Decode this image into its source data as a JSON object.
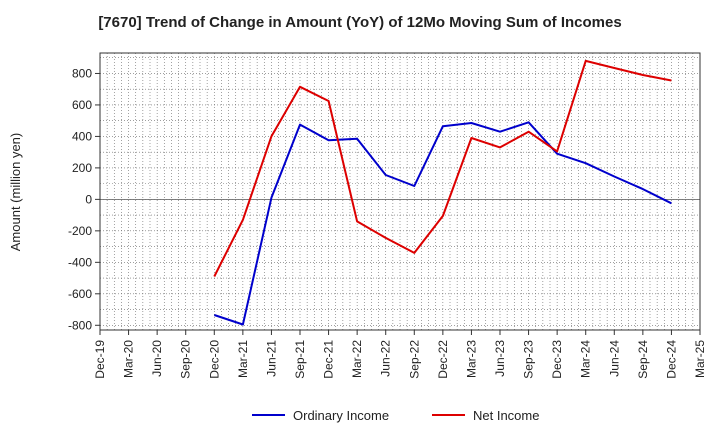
{
  "chart_data": {
    "type": "line",
    "title": "[7670]  Trend of Change in Amount (YoY) of 12Mo Moving Sum of Incomes",
    "ylabel": "Amount (million yen)",
    "xlabel": "",
    "ylim": [
      -830,
      930
    ],
    "yticks": [
      -800,
      -600,
      -400,
      -200,
      0,
      200,
      400,
      600,
      800
    ],
    "x_tick_labels": [
      "Dec-19",
      "Mar-20",
      "Jun-20",
      "Sep-20",
      "Dec-20",
      "Mar-21",
      "Jun-21",
      "Sep-21",
      "Dec-21",
      "Mar-22",
      "Jun-22",
      "Sep-22",
      "Dec-22",
      "Mar-23",
      "Jun-23",
      "Sep-23",
      "Dec-23",
      "Mar-24",
      "Jun-24",
      "Sep-24",
      "Dec-24",
      "Mar-25"
    ],
    "grid": true,
    "legend_position": "bottom",
    "series": [
      {
        "name": "Ordinary Income",
        "color": "#0000cc",
        "values": [
          null,
          null,
          null,
          null,
          -735,
          -795,
          10,
          475,
          375,
          385,
          155,
          85,
          465,
          485,
          430,
          490,
          290,
          230,
          145,
          65,
          -25,
          null
        ]
      },
      {
        "name": "Net Income",
        "color": "#dd0000",
        "values": [
          null,
          null,
          null,
          null,
          -490,
          -130,
          400,
          715,
          625,
          -140,
          -245,
          -340,
          -105,
          390,
          330,
          430,
          305,
          880,
          835,
          790,
          755,
          null
        ]
      }
    ]
  }
}
